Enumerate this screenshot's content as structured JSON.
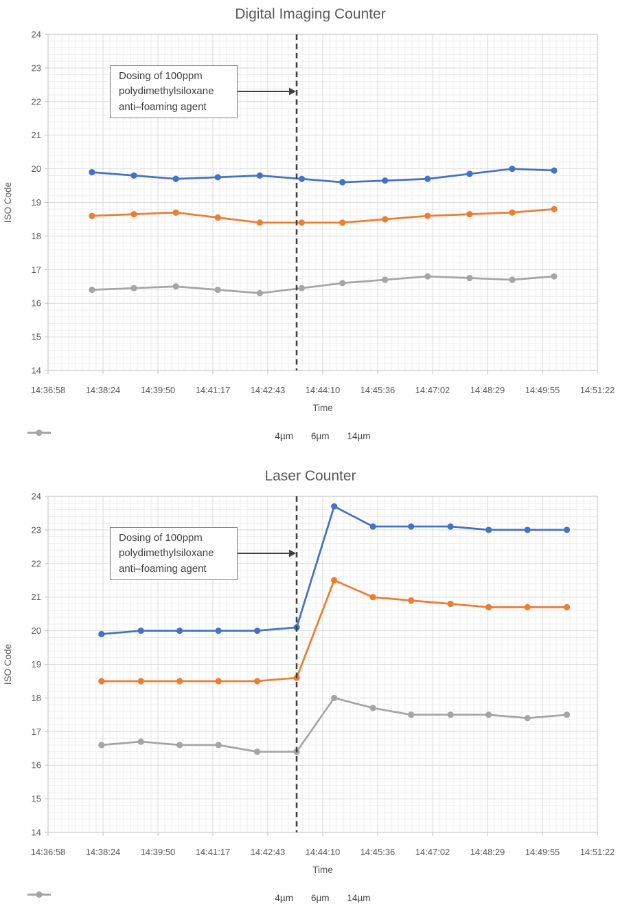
{
  "style": {
    "blue": "#4472C4",
    "orange": "#ED7D31",
    "gray": "#A5A5A5",
    "dose_line_color": "#3F3F3F",
    "arrow_color": "#404040",
    "annotation_border_color": "#7F7F7F",
    "text_color": "#595959",
    "major_grid_color": "#D9D9D9",
    "minor_grid_color": "#EDEDED"
  },
  "chart_data": [
    {
      "id": "digital-imaging-counter",
      "type": "line",
      "title": "Digital Imaging Counter",
      "xlabel": "Time",
      "ylabel": "ISO Code",
      "ylim": [
        14,
        24
      ],
      "y_tick_step": 1,
      "grid": true,
      "legend_position": "bottom",
      "x_tick_labels": [
        "14:36:58",
        "14:38:24",
        "14:39:50",
        "14:41:17",
        "14:42:43",
        "14:44:10",
        "14:45:36",
        "14:47:02",
        "14:48:29",
        "14:49:55",
        "14:51:22"
      ],
      "x_axis_total_seconds": 864,
      "sample_times_seconds": [
        69,
        135,
        201,
        267,
        333,
        399,
        463,
        530,
        597,
        663,
        730,
        796
      ],
      "series": [
        {
          "name": "4µm",
          "color": "#4472C4",
          "values": [
            19.9,
            19.8,
            19.7,
            19.75,
            19.8,
            19.7,
            19.6,
            19.65,
            19.7,
            19.85,
            20.0,
            19.95
          ]
        },
        {
          "name": "6µm",
          "color": "#ED7D31",
          "values": [
            18.6,
            18.65,
            18.7,
            18.55,
            18.4,
            18.4,
            18.4,
            18.5,
            18.6,
            18.65,
            18.7,
            18.8
          ]
        },
        {
          "name": "14µm",
          "color": "#A5A5A5",
          "values": [
            16.4,
            16.45,
            16.5,
            16.4,
            16.3,
            16.45,
            16.6,
            16.7,
            16.8,
            16.75,
            16.7,
            16.8
          ]
        }
      ],
      "dose_line_seconds": 391,
      "annotation": "Dosing of 100ppm\npolydimethylsiloxane\nanti–foaming agent"
    },
    {
      "id": "laser-counter",
      "type": "line",
      "title": "Laser Counter",
      "xlabel": "Time",
      "ylabel": "ISO Code",
      "ylim": [
        14,
        24
      ],
      "y_tick_step": 1,
      "grid": true,
      "legend_position": "bottom",
      "x_tick_labels": [
        "14:36:58",
        "14:38:24",
        "14:39:50",
        "14:41:17",
        "14:42:43",
        "14:44:10",
        "14:45:36",
        "14:47:02",
        "14:48:29",
        "14:49:55",
        "14:51:22"
      ],
      "x_axis_total_seconds": 864,
      "sample_times_seconds": [
        84,
        146,
        207,
        268,
        329,
        391,
        450,
        511,
        571,
        633,
        693,
        754,
        816
      ],
      "series": [
        {
          "name": "4µm",
          "color": "#4472C4",
          "values": [
            19.9,
            20.0,
            20.0,
            20.0,
            20.0,
            20.1,
            23.7,
            23.1,
            23.1,
            23.1,
            23.0,
            23.0,
            23.0
          ]
        },
        {
          "name": "6µm",
          "color": "#ED7D31",
          "values": [
            18.5,
            18.5,
            18.5,
            18.5,
            18.5,
            18.6,
            21.5,
            21.0,
            20.9,
            20.8,
            20.7,
            20.7,
            20.7
          ]
        },
        {
          "name": "14µm",
          "color": "#A5A5A5",
          "values": [
            16.6,
            16.7,
            16.6,
            16.6,
            16.4,
            16.4,
            18.0,
            17.7,
            17.5,
            17.5,
            17.5,
            17.4,
            17.5
          ]
        }
      ],
      "dose_line_seconds": 391,
      "annotation": "Dosing of 100ppm\npolydimethylsiloxane\nanti–foaming agent"
    }
  ]
}
